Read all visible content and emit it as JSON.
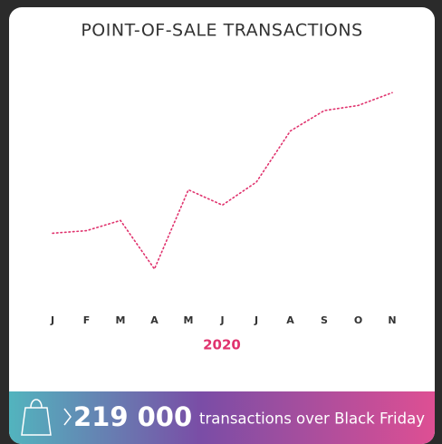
{
  "chart_data": {
    "type": "line",
    "title": "POINT-OF-SALE TRANSACTIONS",
    "categories": [
      "J",
      "F",
      "M",
      "A",
      "M",
      "J",
      "J",
      "A",
      "S",
      "O",
      "N"
    ],
    "values": [
      30,
      31,
      35,
      16,
      47,
      41,
      50,
      70,
      78,
      80,
      85
    ],
    "color": "#e0336e",
    "ylim": [
      0,
      100
    ],
    "year": "2020"
  },
  "banner": {
    "figure": "219 000",
    "caption": "transactions over Black Friday"
  }
}
